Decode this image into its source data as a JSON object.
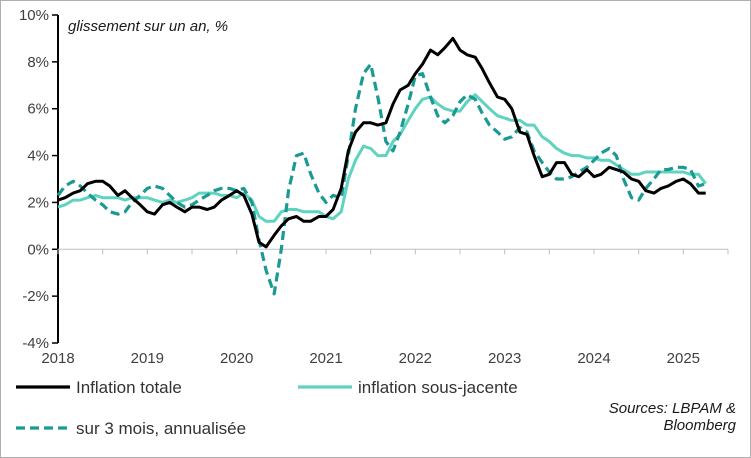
{
  "chart_data": {
    "type": "line",
    "subtitle": "glissement sur un an, %",
    "source_line1": "Sources: LBPAM &",
    "source_line2": "Bloomberg",
    "ylim": [
      -4,
      10
    ],
    "yticks": [
      -4,
      -2,
      0,
      2,
      4,
      6,
      8,
      10
    ],
    "ytick_labels": [
      "-4%",
      "-2%",
      "0%",
      "2%",
      "4%",
      "6%",
      "8%",
      "10%"
    ],
    "xlim": [
      2018.0,
      2025.5
    ],
    "xticks": [
      2018,
      2019,
      2020,
      2021,
      2022,
      2023,
      2024,
      2025
    ],
    "xtick_labels": [
      "2018",
      "2019",
      "2020",
      "2021",
      "2022",
      "2023",
      "2024",
      "2025"
    ],
    "grid": false,
    "legend_position": "bottom",
    "series": [
      {
        "name": "Inflation totale",
        "color": "#000000",
        "dash": "solid",
        "x": [
          2018.0,
          2018.08,
          2018.17,
          2018.25,
          2018.33,
          2018.42,
          2018.5,
          2018.58,
          2018.67,
          2018.75,
          2018.83,
          2018.92,
          2019.0,
          2019.08,
          2019.17,
          2019.25,
          2019.33,
          2019.42,
          2019.5,
          2019.58,
          2019.67,
          2019.75,
          2019.83,
          2019.92,
          2020.0,
          2020.08,
          2020.17,
          2020.25,
          2020.33,
          2020.42,
          2020.5,
          2020.58,
          2020.67,
          2020.75,
          2020.83,
          2020.92,
          2021.0,
          2021.08,
          2021.17,
          2021.25,
          2021.33,
          2021.42,
          2021.5,
          2021.58,
          2021.67,
          2021.75,
          2021.83,
          2021.92,
          2022.0,
          2022.08,
          2022.17,
          2022.25,
          2022.33,
          2022.42,
          2022.5,
          2022.58,
          2022.67,
          2022.75,
          2022.83,
          2022.92,
          2023.0,
          2023.08,
          2023.17,
          2023.25,
          2023.33,
          2023.42,
          2023.5,
          2023.58,
          2023.67,
          2023.75,
          2023.83,
          2023.92,
          2024.0,
          2024.08,
          2024.17,
          2024.25,
          2024.33,
          2024.42,
          2024.5,
          2024.58,
          2024.67,
          2024.75,
          2024.83,
          2024.92,
          2025.0,
          2025.08,
          2025.17,
          2025.25
        ],
        "values": [
          2.1,
          2.2,
          2.4,
          2.5,
          2.8,
          2.9,
          2.9,
          2.7,
          2.3,
          2.5,
          2.2,
          1.9,
          1.6,
          1.5,
          1.9,
          2.0,
          1.8,
          1.6,
          1.8,
          1.8,
          1.7,
          1.8,
          2.1,
          2.3,
          2.5,
          2.3,
          1.5,
          0.3,
          0.1,
          0.6,
          1.0,
          1.3,
          1.4,
          1.2,
          1.2,
          1.4,
          1.4,
          1.7,
          2.6,
          4.2,
          5.0,
          5.4,
          5.4,
          5.3,
          5.4,
          6.2,
          6.8,
          7.0,
          7.5,
          7.9,
          8.5,
          8.3,
          8.6,
          9.0,
          8.5,
          8.3,
          8.2,
          7.7,
          7.1,
          6.5,
          6.4,
          6.0,
          5.0,
          4.9,
          4.0,
          3.1,
          3.2,
          3.7,
          3.7,
          3.2,
          3.1,
          3.4,
          3.1,
          3.2,
          3.5,
          3.4,
          3.3,
          3.0,
          2.9,
          2.5,
          2.4,
          2.6,
          2.7,
          2.9,
          3.0,
          2.8,
          2.4,
          2.4
        ]
      },
      {
        "name": "inflation sous-jacente",
        "color": "#5fd3bf",
        "dash": "solid",
        "x": [
          2018.0,
          2018.08,
          2018.17,
          2018.25,
          2018.33,
          2018.42,
          2018.5,
          2018.58,
          2018.67,
          2018.75,
          2018.83,
          2018.92,
          2019.0,
          2019.08,
          2019.17,
          2019.25,
          2019.33,
          2019.42,
          2019.5,
          2019.58,
          2019.67,
          2019.75,
          2019.83,
          2019.92,
          2020.0,
          2020.08,
          2020.17,
          2020.25,
          2020.33,
          2020.42,
          2020.5,
          2020.58,
          2020.67,
          2020.75,
          2020.83,
          2020.92,
          2021.0,
          2021.08,
          2021.17,
          2021.25,
          2021.33,
          2021.42,
          2021.5,
          2021.58,
          2021.67,
          2021.75,
          2021.83,
          2021.92,
          2022.0,
          2022.08,
          2022.17,
          2022.25,
          2022.33,
          2022.42,
          2022.5,
          2022.58,
          2022.67,
          2022.75,
          2022.83,
          2022.92,
          2023.0,
          2023.08,
          2023.17,
          2023.25,
          2023.33,
          2023.42,
          2023.5,
          2023.58,
          2023.67,
          2023.75,
          2023.83,
          2023.92,
          2024.0,
          2024.08,
          2024.17,
          2024.25,
          2024.33,
          2024.42,
          2024.5,
          2024.58,
          2024.67,
          2024.75,
          2024.83,
          2024.92,
          2025.0,
          2025.08,
          2025.17,
          2025.25
        ],
        "values": [
          1.8,
          1.9,
          2.1,
          2.1,
          2.2,
          2.3,
          2.2,
          2.2,
          2.2,
          2.1,
          2.2,
          2.2,
          2.2,
          2.1,
          2.0,
          2.1,
          2.0,
          2.1,
          2.2,
          2.4,
          2.4,
          2.4,
          2.3,
          2.3,
          2.2,
          2.4,
          2.1,
          1.4,
          1.2,
          1.2,
          1.6,
          1.7,
          1.7,
          1.6,
          1.6,
          1.6,
          1.4,
          1.3,
          1.6,
          3.0,
          3.8,
          4.4,
          4.3,
          4.0,
          4.0,
          4.6,
          4.9,
          5.5,
          6.0,
          6.4,
          6.5,
          6.2,
          6.0,
          5.9,
          5.9,
          6.3,
          6.6,
          6.3,
          6.0,
          5.7,
          5.6,
          5.5,
          5.5,
          5.3,
          5.3,
          4.8,
          4.6,
          4.3,
          4.1,
          4.0,
          4.0,
          3.9,
          3.9,
          3.8,
          3.8,
          3.6,
          3.4,
          3.2,
          3.2,
          3.3,
          3.3,
          3.3,
          3.3,
          3.3,
          3.3,
          3.2,
          3.2,
          2.8
        ]
      },
      {
        "name": "sur 3 mois, annualisée",
        "color": "#1a9a92",
        "dash": "dashed",
        "x": [
          2018.0,
          2018.08,
          2018.17,
          2018.25,
          2018.33,
          2018.42,
          2018.5,
          2018.58,
          2018.67,
          2018.75,
          2018.83,
          2018.92,
          2019.0,
          2019.08,
          2019.17,
          2019.25,
          2019.33,
          2019.42,
          2019.5,
          2019.58,
          2019.67,
          2019.75,
          2019.83,
          2019.92,
          2020.0,
          2020.08,
          2020.17,
          2020.25,
          2020.33,
          2020.42,
          2020.5,
          2020.58,
          2020.67,
          2020.75,
          2020.83,
          2020.92,
          2021.0,
          2021.08,
          2021.17,
          2021.25,
          2021.33,
          2021.42,
          2021.5,
          2021.58,
          2021.67,
          2021.75,
          2021.83,
          2021.92,
          2022.0,
          2022.08,
          2022.17,
          2022.25,
          2022.33,
          2022.42,
          2022.5,
          2022.58,
          2022.67,
          2022.75,
          2022.83,
          2022.92,
          2023.0,
          2023.08,
          2023.17,
          2023.25,
          2023.33,
          2023.42,
          2023.5,
          2023.58,
          2023.67,
          2023.75,
          2023.83,
          2023.92,
          2024.0,
          2024.08,
          2024.17,
          2024.25,
          2024.33,
          2024.42,
          2024.5,
          2024.58,
          2024.67,
          2024.75,
          2024.83,
          2024.92,
          2025.0,
          2025.08,
          2025.17,
          2025.25
        ],
        "values": [
          2.3,
          2.7,
          2.9,
          2.7,
          2.4,
          2.1,
          1.9,
          1.6,
          1.5,
          1.6,
          2.0,
          2.3,
          2.6,
          2.7,
          2.6,
          2.3,
          2.0,
          1.8,
          1.9,
          2.1,
          2.3,
          2.5,
          2.6,
          2.6,
          2.5,
          2.6,
          2.0,
          0.4,
          -0.9,
          -1.9,
          0.0,
          2.5,
          4.0,
          4.1,
          3.2,
          2.4,
          2.0,
          2.3,
          2.2,
          4.0,
          6.0,
          7.5,
          7.9,
          6.5,
          4.6,
          4.2,
          5.0,
          6.2,
          7.4,
          7.5,
          6.5,
          5.7,
          5.4,
          5.7,
          6.3,
          6.6,
          6.4,
          5.8,
          5.3,
          5.0,
          4.7,
          4.8,
          5.2,
          5.0,
          4.2,
          3.7,
          3.3,
          3.0,
          3.0,
          3.1,
          3.3,
          3.5,
          3.8,
          4.1,
          4.3,
          4.0,
          3.0,
          2.2,
          2.1,
          2.6,
          3.0,
          3.4,
          3.4,
          3.5,
          3.5,
          3.4,
          2.7,
          2.8
        ]
      }
    ]
  }
}
